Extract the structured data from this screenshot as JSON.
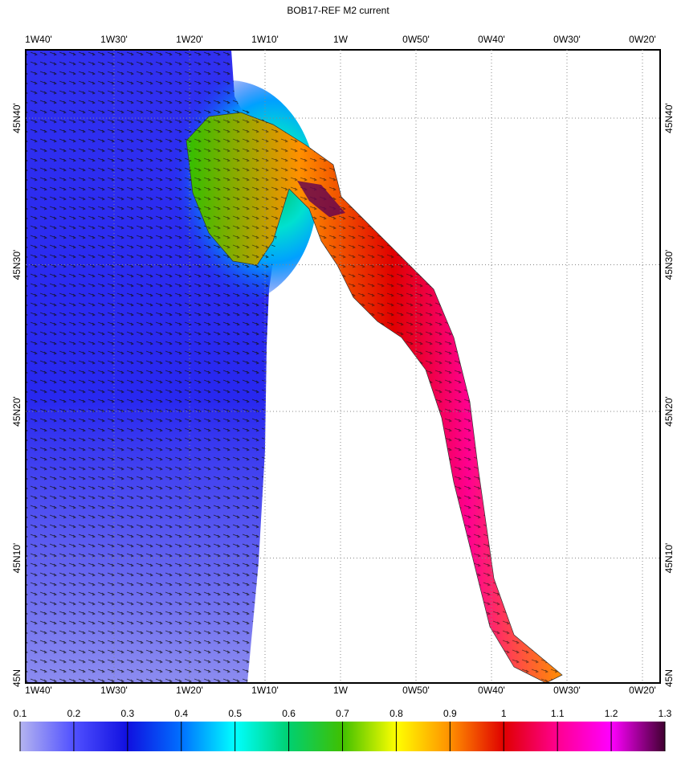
{
  "title": "BOB17-REF M2 current",
  "lon_labels": [
    "1W40'",
    "1W30'",
    "1W20'",
    "1W10'",
    "1W",
    "0W50'",
    "0W40'",
    "0W30'",
    "0W20'"
  ],
  "lat_labels": [
    "45N40'",
    "45N30'",
    "45N20'",
    "45N10'",
    "45N"
  ],
  "colorbar": {
    "ticks": [
      0.1,
      0.2,
      0.3,
      0.4,
      0.5,
      0.6,
      0.7,
      0.8,
      0.9,
      1,
      1.1,
      1.2,
      1.3
    ],
    "colors": [
      "#b4b4f0",
      "#5050ff",
      "#1010e0",
      "#0070ff",
      "#00ffff",
      "#00d070",
      "#40c000",
      "#ffff00",
      "#ff9000",
      "#e00000",
      "#ff0090",
      "#ff00ff",
      "#400030"
    ]
  }
}
